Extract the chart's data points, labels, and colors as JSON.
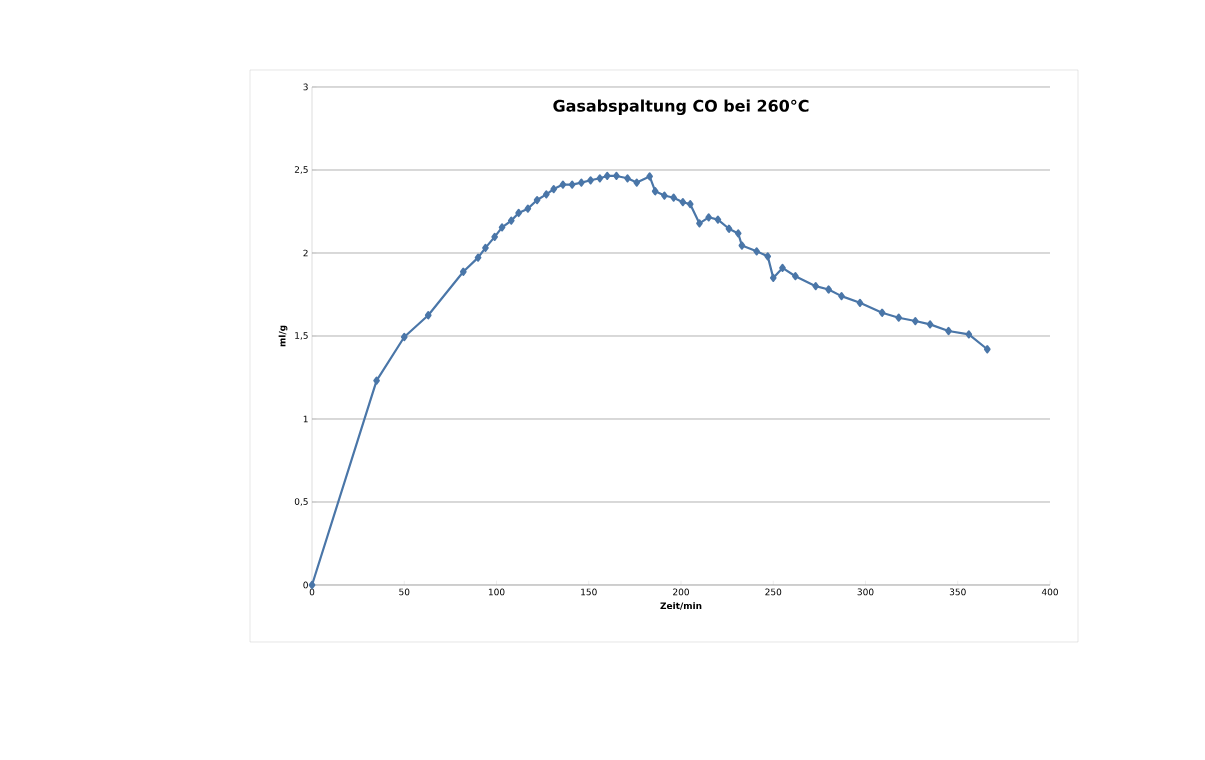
{
  "chart_data": {
    "type": "line",
    "title": "Gasabspaltung  CO  bei  260°C",
    "xlabel": "Zeit/min",
    "ylabel": "ml/g",
    "x": [
      0,
      35,
      50,
      63,
      82,
      90,
      94,
      99,
      103,
      108,
      112,
      117,
      122,
      127,
      131,
      136,
      141,
      146,
      151,
      156,
      160,
      165,
      171,
      176,
      183,
      186,
      191,
      196,
      201,
      205,
      210,
      215,
      220,
      226,
      231,
      233,
      241,
      247,
      250,
      255,
      262,
      273,
      280,
      287,
      297,
      309,
      318,
      327,
      335,
      345,
      356,
      366
    ],
    "values": [
      0,
      1.231,
      1.494,
      1.625,
      1.887,
      1.972,
      2.031,
      2.097,
      2.154,
      2.195,
      2.241,
      2.267,
      2.319,
      2.353,
      2.385,
      2.412,
      2.412,
      2.424,
      2.438,
      2.45,
      2.464,
      2.464,
      2.45,
      2.424,
      2.461,
      2.372,
      2.346,
      2.333,
      2.306,
      2.294,
      2.178,
      2.215,
      2.201,
      2.146,
      2.118,
      2.045,
      2.01,
      1.98,
      1.85,
      1.91,
      1.86,
      1.8,
      1.78,
      1.74,
      1.7,
      1.64,
      1.61,
      1.59,
      1.57,
      1.53,
      1.51,
      1.42
    ],
    "color": "#4a76a8",
    "marker": "diamond",
    "line_style": "solid",
    "grid": "y",
    "xlim": [
      0,
      400
    ],
    "xticks": [
      0,
      50,
      100,
      150,
      200,
      250,
      300,
      350,
      400
    ],
    "ylim": [
      0,
      3
    ],
    "yticks": [
      0,
      {
        "value": 0.5,
        "label": "0,5"
      },
      1,
      {
        "value": 1.5,
        "label": "1,5"
      },
      2,
      {
        "value": 2.5,
        "label": "2,5"
      },
      3
    ]
  }
}
